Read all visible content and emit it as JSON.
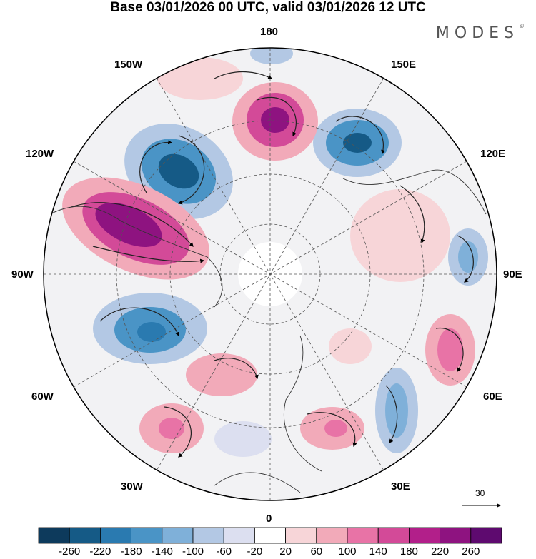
{
  "title": "Base 03/01/2026 00 UTC, valid 03/01/2026 12 UTC",
  "brand": "MODES",
  "brand_mark": "©",
  "longitude_labels": {
    "top": "180",
    "bottom": "0",
    "left": "90W",
    "right": "90E",
    "upper_left_1": "150W",
    "upper_left_2": "120W",
    "upper_right_1": "150E",
    "upper_right_2": "120E",
    "lower_left_1": "60W",
    "lower_left_2": "30W",
    "lower_right_1": "60E",
    "lower_right_2": "30E"
  },
  "reference_vector": {
    "label": "30"
  },
  "colorbar": {
    "ticks": [
      "-260",
      "-220",
      "-180",
      "-140",
      "-100",
      "-60",
      "-20",
      "20",
      "60",
      "100",
      "140",
      "180",
      "220",
      "260"
    ],
    "colors": [
      "#0d3a5c",
      "#155a86",
      "#2a7ab0",
      "#4a94c6",
      "#7fb0d9",
      "#b3c8e4",
      "#dcdff0",
      "#ffffff",
      "#f7d5d8",
      "#f2aab9",
      "#e873a6",
      "#d34a98",
      "#b21f8a",
      "#8e1380",
      "#5e0a6f"
    ]
  }
}
